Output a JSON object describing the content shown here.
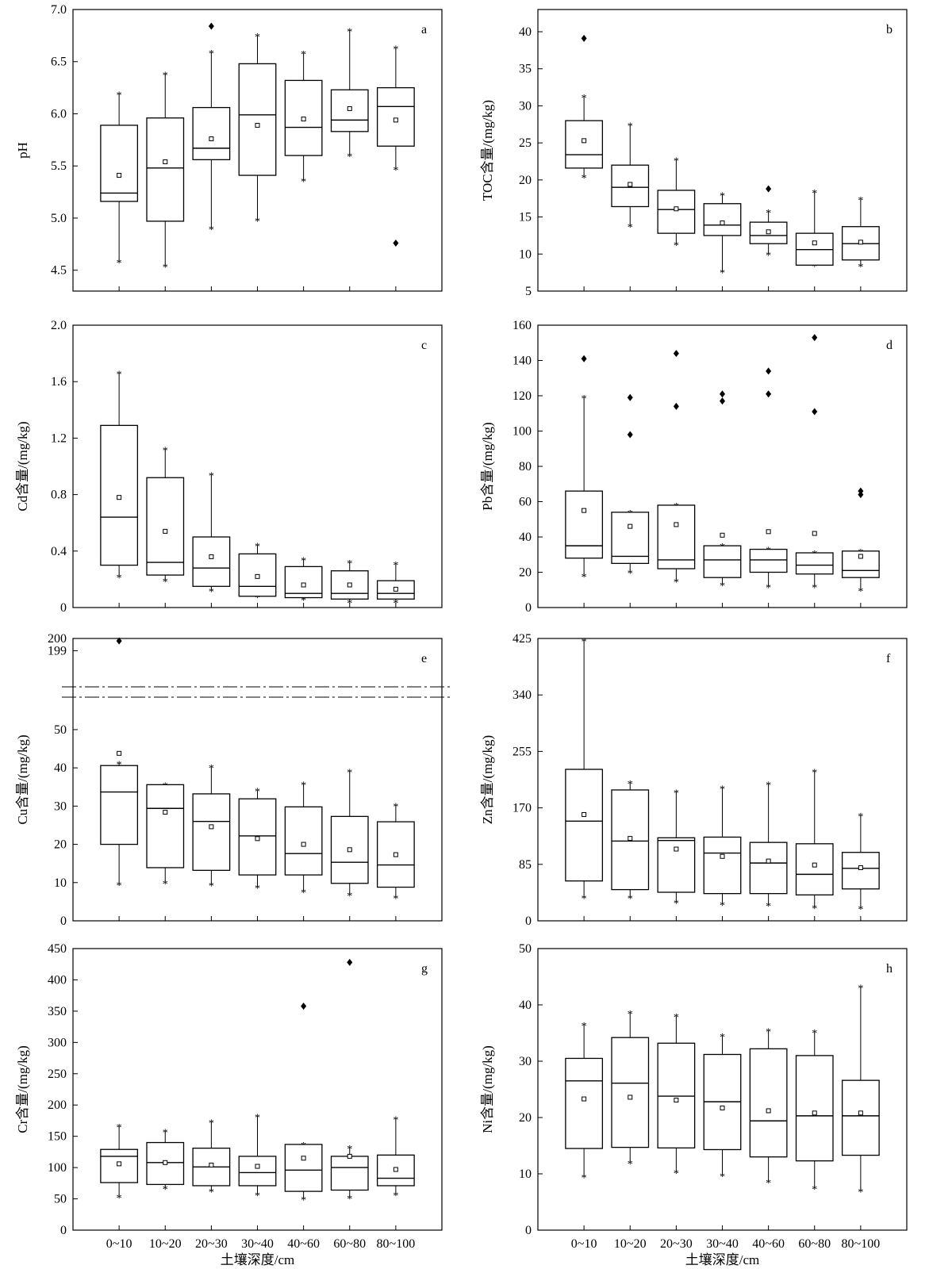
{
  "figure": {
    "xlabel": "土壤深度/cm",
    "categories": [
      "0~10",
      "10~20",
      "20~30",
      "30~40",
      "40~60",
      "60~80",
      "80~100"
    ]
  },
  "chart_data": [
    {
      "type": "box",
      "panel": "a",
      "ylabel": "pH",
      "ylim": [
        4.3,
        7.0
      ],
      "yticks": [
        4.5,
        5.0,
        5.5,
        6.0,
        6.5,
        7.0
      ],
      "ytick_labels": [
        "4.5",
        "5.0",
        "5.5",
        "6.0",
        "6.5",
        "7.0"
      ],
      "boxes": [
        {
          "q1": 5.16,
          "median": 5.24,
          "q3": 5.89,
          "mean": 5.41,
          "whisker_low": 4.58,
          "whisker_high": 6.19,
          "outliers": []
        },
        {
          "q1": 4.97,
          "median": 5.48,
          "q3": 5.96,
          "mean": 5.54,
          "whisker_low": 4.54,
          "whisker_high": 6.38,
          "outliers": []
        },
        {
          "q1": 5.56,
          "median": 5.67,
          "q3": 6.06,
          "mean": 5.76,
          "whisker_low": 4.9,
          "whisker_high": 6.59,
          "outliers": [
            6.84
          ]
        },
        {
          "q1": 5.41,
          "median": 5.99,
          "q3": 6.48,
          "mean": 5.89,
          "whisker_low": 4.98,
          "whisker_high": 6.75,
          "outliers": []
        },
        {
          "q1": 5.6,
          "median": 5.87,
          "q3": 6.32,
          "mean": 5.95,
          "whisker_low": 5.36,
          "whisker_high": 6.58,
          "outliers": []
        },
        {
          "q1": 5.83,
          "median": 5.94,
          "q3": 6.23,
          "mean": 6.05,
          "whisker_low": 5.6,
          "whisker_high": 6.8,
          "outliers": []
        },
        {
          "q1": 5.69,
          "median": 6.07,
          "q3": 6.25,
          "mean": 5.94,
          "whisker_low": 5.47,
          "whisker_high": 6.63,
          "outliers": [
            4.76
          ]
        }
      ]
    },
    {
      "type": "box",
      "panel": "b",
      "ylabel": "TOC含量/(mg/kg)",
      "ylim": [
        5,
        43
      ],
      "yticks": [
        5,
        10,
        15,
        20,
        25,
        30,
        35,
        40
      ],
      "ytick_labels": [
        "5",
        "10",
        "15",
        "20",
        "25",
        "30",
        "35",
        "40"
      ],
      "boxes": [
        {
          "q1": 21.6,
          "median": 23.4,
          "q3": 28.0,
          "mean": 25.3,
          "whisker_low": 20.4,
          "whisker_high": 31.2,
          "outliers": [
            39.1
          ]
        },
        {
          "q1": 16.4,
          "median": 19.0,
          "q3": 22.0,
          "mean": 19.4,
          "whisker_low": 13.8,
          "whisker_high": 27.4,
          "outliers": []
        },
        {
          "q1": 12.8,
          "median": 16.0,
          "q3": 18.6,
          "mean": 16.1,
          "whisker_low": 11.3,
          "whisker_high": 22.7,
          "outliers": []
        },
        {
          "q1": 12.5,
          "median": 13.9,
          "q3": 16.8,
          "mean": 14.2,
          "whisker_low": 7.6,
          "whisker_high": 18.0,
          "outliers": []
        },
        {
          "q1": 11.4,
          "median": 12.5,
          "q3": 14.3,
          "mean": 13.0,
          "whisker_low": 10.0,
          "whisker_high": 15.7,
          "outliers": [
            18.8
          ]
        },
        {
          "q1": 8.5,
          "median": 10.6,
          "q3": 12.8,
          "mean": 11.5,
          "whisker_low": 8.5,
          "whisker_high": 18.4,
          "outliers": []
        },
        {
          "q1": 9.2,
          "median": 11.4,
          "q3": 13.7,
          "mean": 11.6,
          "whisker_low": 8.4,
          "whisker_high": 17.4,
          "outliers": []
        }
      ]
    },
    {
      "type": "box",
      "panel": "c",
      "ylabel": "Cd含量/(mg/kg)",
      "ylim": [
        0,
        2.0
      ],
      "yticks": [
        0,
        0.4,
        0.8,
        1.2,
        1.6,
        2.0
      ],
      "ytick_labels": [
        "0",
        "0.4",
        "0.8",
        "1.2",
        "1.6",
        "2.0"
      ],
      "boxes": [
        {
          "q1": 0.3,
          "median": 0.64,
          "q3": 1.29,
          "mean": 0.78,
          "whisker_low": 0.22,
          "whisker_high": 1.66,
          "outliers": []
        },
        {
          "q1": 0.23,
          "median": 0.32,
          "q3": 0.92,
          "mean": 0.54,
          "whisker_low": 0.19,
          "whisker_high": 1.12,
          "outliers": []
        },
        {
          "q1": 0.15,
          "median": 0.28,
          "q3": 0.5,
          "mean": 0.36,
          "whisker_low": 0.12,
          "whisker_high": 0.94,
          "outliers": []
        },
        {
          "q1": 0.08,
          "median": 0.15,
          "q3": 0.38,
          "mean": 0.22,
          "whisker_low": 0.08,
          "whisker_high": 0.44,
          "outliers": []
        },
        {
          "q1": 0.07,
          "median": 0.1,
          "q3": 0.29,
          "mean": 0.16,
          "whisker_low": 0.06,
          "whisker_high": 0.34,
          "outliers": []
        },
        {
          "q1": 0.06,
          "median": 0.1,
          "q3": 0.26,
          "mean": 0.16,
          "whisker_low": 0.04,
          "whisker_high": 0.32,
          "outliers": []
        },
        {
          "q1": 0.06,
          "median": 0.1,
          "q3": 0.19,
          "mean": 0.13,
          "whisker_low": 0.04,
          "whisker_high": 0.31,
          "outliers": []
        }
      ]
    },
    {
      "type": "box",
      "panel": "d",
      "ylabel": "Pb含量/(mg/kg)",
      "ylim": [
        0,
        160
      ],
      "yticks": [
        0,
        20,
        40,
        60,
        80,
        100,
        120,
        140,
        160
      ],
      "ytick_labels": [
        "0",
        "20",
        "40",
        "60",
        "80",
        "100",
        "120",
        "140",
        "160"
      ],
      "boxes": [
        {
          "q1": 28,
          "median": 35,
          "q3": 66,
          "mean": 55,
          "whisker_low": 18,
          "whisker_high": 119,
          "outliers": [
            141
          ]
        },
        {
          "q1": 25,
          "median": 29,
          "q3": 54,
          "mean": 46,
          "whisker_low": 20,
          "whisker_high": 54,
          "outliers": [
            98,
            119
          ]
        },
        {
          "q1": 22,
          "median": 27,
          "q3": 58,
          "mean": 47,
          "whisker_low": 15,
          "whisker_high": 58,
          "outliers": [
            114,
            144
          ]
        },
        {
          "q1": 17,
          "median": 27,
          "q3": 35,
          "mean": 41,
          "whisker_low": 13,
          "whisker_high": 35,
          "outliers": [
            117,
            121
          ]
        },
        {
          "q1": 20,
          "median": 27,
          "q3": 33,
          "mean": 43,
          "whisker_low": 12,
          "whisker_high": 33,
          "outliers": [
            121,
            134
          ]
        },
        {
          "q1": 19,
          "median": 24,
          "q3": 31,
          "mean": 42,
          "whisker_low": 12,
          "whisker_high": 31,
          "outliers": [
            111,
            153
          ]
        },
        {
          "q1": 17,
          "median": 21,
          "q3": 32,
          "mean": 29,
          "whisker_low": 10,
          "whisker_high": 32,
          "outliers": [
            64,
            66
          ]
        }
      ]
    },
    {
      "type": "box",
      "panel": "e",
      "ylabel": "Cu含量/(mg/kg)",
      "ylim": [
        0,
        200
      ],
      "axis_break": [
        56,
        198
      ],
      "yticks": [
        0,
        10,
        20,
        30,
        40,
        50,
        199,
        200
      ],
      "ytick_labels": [
        "0",
        "10",
        "20",
        "30",
        "40",
        "50",
        "199",
        "200"
      ],
      "boxes": [
        {
          "q1": 20.0,
          "median": 33.7,
          "q3": 40.6,
          "mean": 43.8,
          "whisker_low": 9.5,
          "whisker_high": 41.2,
          "outliers": [
            199.8
          ]
        },
        {
          "q1": 13.9,
          "median": 29.4,
          "q3": 35.6,
          "mean": 28.4,
          "whisker_low": 10.0,
          "whisker_high": 35.6,
          "outliers": []
        },
        {
          "q1": 13.2,
          "median": 26.0,
          "q3": 33.2,
          "mean": 24.6,
          "whisker_low": 9.4,
          "whisker_high": 40.2,
          "outliers": []
        },
        {
          "q1": 12.0,
          "median": 22.2,
          "q3": 31.9,
          "mean": 21.5,
          "whisker_low": 8.8,
          "whisker_high": 34.1,
          "outliers": []
        },
        {
          "q1": 12.0,
          "median": 17.6,
          "q3": 29.8,
          "mean": 20.0,
          "whisker_low": 7.7,
          "whisker_high": 35.8,
          "outliers": []
        },
        {
          "q1": 9.8,
          "median": 15.3,
          "q3": 27.3,
          "mean": 18.6,
          "whisker_low": 6.8,
          "whisker_high": 39.1,
          "outliers": []
        },
        {
          "q1": 8.8,
          "median": 14.6,
          "q3": 25.9,
          "mean": 17.3,
          "whisker_low": 6.1,
          "whisker_high": 30.2,
          "outliers": []
        }
      ]
    },
    {
      "type": "box",
      "panel": "f",
      "ylabel": "Zn含量/(mg/kg)",
      "ylim": [
        0,
        425
      ],
      "yticks": [
        0,
        85,
        170,
        255,
        340,
        425
      ],
      "ytick_labels": [
        "0",
        "85",
        "170",
        "255",
        "340",
        "425"
      ],
      "boxes": [
        {
          "q1": 60,
          "median": 150,
          "q3": 228,
          "mean": 160,
          "whisker_low": 35,
          "whisker_high": 422,
          "outliers": []
        },
        {
          "q1": 47,
          "median": 120,
          "q3": 197,
          "mean": 124,
          "whisker_low": 35,
          "whisker_high": 208,
          "outliers": []
        },
        {
          "q1": 43,
          "median": 121,
          "q3": 125,
          "mean": 108,
          "whisker_low": 28,
          "whisker_high": 194,
          "outliers": []
        },
        {
          "q1": 41,
          "median": 102,
          "q3": 126,
          "mean": 97,
          "whisker_low": 25,
          "whisker_high": 200,
          "outliers": []
        },
        {
          "q1": 41,
          "median": 87,
          "q3": 118,
          "mean": 90,
          "whisker_low": 24,
          "whisker_high": 206,
          "outliers": []
        },
        {
          "q1": 39,
          "median": 70,
          "q3": 116,
          "mean": 84,
          "whisker_low": 20,
          "whisker_high": 225,
          "outliers": []
        },
        {
          "q1": 48,
          "median": 79,
          "q3": 103,
          "mean": 80,
          "whisker_low": 19,
          "whisker_high": 159,
          "outliers": []
        }
      ]
    },
    {
      "type": "box",
      "panel": "g",
      "ylabel": "Cr含量/(mg/kg)",
      "ylim": [
        0,
        450
      ],
      "yticks": [
        0,
        50,
        100,
        150,
        200,
        250,
        300,
        350,
        400,
        450
      ],
      "ytick_labels": [
        "0",
        "50",
        "100",
        "150",
        "200",
        "250",
        "300",
        "350",
        "400",
        "450"
      ],
      "boxes": [
        {
          "q1": 76,
          "median": 118,
          "q3": 129,
          "mean": 106,
          "whisker_low": 53,
          "whisker_high": 166,
          "outliers": []
        },
        {
          "q1": 73,
          "median": 108,
          "q3": 140,
          "mean": 108,
          "whisker_low": 67,
          "whisker_high": 158,
          "outliers": []
        },
        {
          "q1": 71,
          "median": 101,
          "q3": 131,
          "mean": 104,
          "whisker_low": 63,
          "whisker_high": 173,
          "outliers": []
        },
        {
          "q1": 71,
          "median": 92,
          "q3": 118,
          "mean": 102,
          "whisker_low": 57,
          "whisker_high": 182,
          "outliers": []
        },
        {
          "q1": 62,
          "median": 96,
          "q3": 137,
          "mean": 115,
          "whisker_low": 50,
          "whisker_high": 137,
          "outliers": [
            358
          ]
        },
        {
          "q1": 64,
          "median": 100,
          "q3": 118,
          "mean": 118,
          "whisker_low": 52,
          "whisker_high": 132,
          "outliers": [
            428
          ]
        },
        {
          "q1": 71,
          "median": 83,
          "q3": 120,
          "mean": 97,
          "whisker_low": 57,
          "whisker_high": 178,
          "outliers": []
        }
      ]
    },
    {
      "type": "box",
      "panel": "h",
      "ylabel": "Ni含量/(mg/kg)",
      "ylim": [
        0,
        50
      ],
      "yticks": [
        0,
        10,
        20,
        30,
        40,
        50
      ],
      "ytick_labels": [
        "0",
        "10",
        "20",
        "30",
        "40",
        "50"
      ],
      "boxes": [
        {
          "q1": 14.5,
          "median": 26.5,
          "q3": 30.5,
          "mean": 23.3,
          "whisker_low": 9.5,
          "whisker_high": 36.5,
          "outliers": []
        },
        {
          "q1": 14.7,
          "median": 26.1,
          "q3": 34.2,
          "mean": 23.6,
          "whisker_low": 12.0,
          "whisker_high": 38.6,
          "outliers": []
        },
        {
          "q1": 14.6,
          "median": 23.8,
          "q3": 33.2,
          "mean": 23.1,
          "whisker_low": 10.3,
          "whisker_high": 38.0,
          "outliers": []
        },
        {
          "q1": 14.3,
          "median": 22.8,
          "q3": 31.2,
          "mean": 21.7,
          "whisker_low": 9.7,
          "whisker_high": 34.5,
          "outliers": []
        },
        {
          "q1": 13.0,
          "median": 19.4,
          "q3": 32.2,
          "mean": 21.2,
          "whisker_low": 8.6,
          "whisker_high": 35.4,
          "outliers": []
        },
        {
          "q1": 12.3,
          "median": 20.3,
          "q3": 31.0,
          "mean": 20.8,
          "whisker_low": 7.5,
          "whisker_high": 35.2,
          "outliers": []
        },
        {
          "q1": 13.3,
          "median": 20.3,
          "q3": 26.6,
          "mean": 20.8,
          "whisker_low": 7.0,
          "whisker_high": 43.2,
          "outliers": []
        }
      ]
    }
  ]
}
